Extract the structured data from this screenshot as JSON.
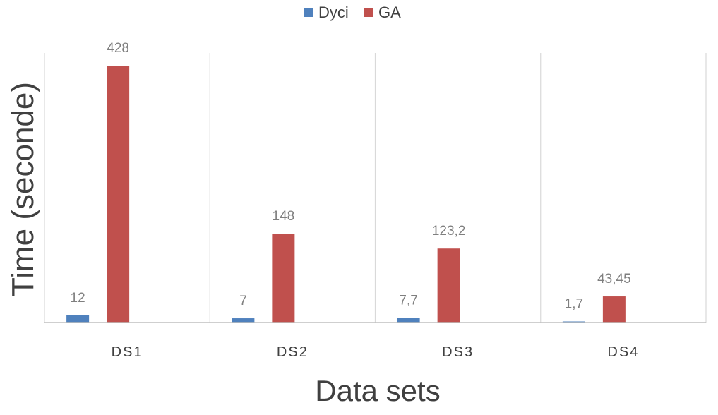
{
  "chart_data": {
    "type": "bar",
    "categories": [
      "DS1",
      "DS2",
      "DS3",
      "DS4"
    ],
    "series": [
      {
        "name": "Dyci",
        "values": [
          12,
          7,
          7.7,
          1.7
        ],
        "labels": [
          "12",
          "7",
          "7,7",
          "1,7"
        ],
        "color": "#4f81bd"
      },
      {
        "name": "GA",
        "values": [
          428,
          148,
          123.2,
          43.45
        ],
        "labels": [
          "428",
          "148",
          "123,2",
          "43,45"
        ],
        "color": "#c0504d"
      }
    ],
    "xlabel": "Data sets",
    "ylabel": "Time (seconde)",
    "ylim": [
      0,
      460
    ],
    "legend": "top-center",
    "grid": "vertical category separators"
  }
}
